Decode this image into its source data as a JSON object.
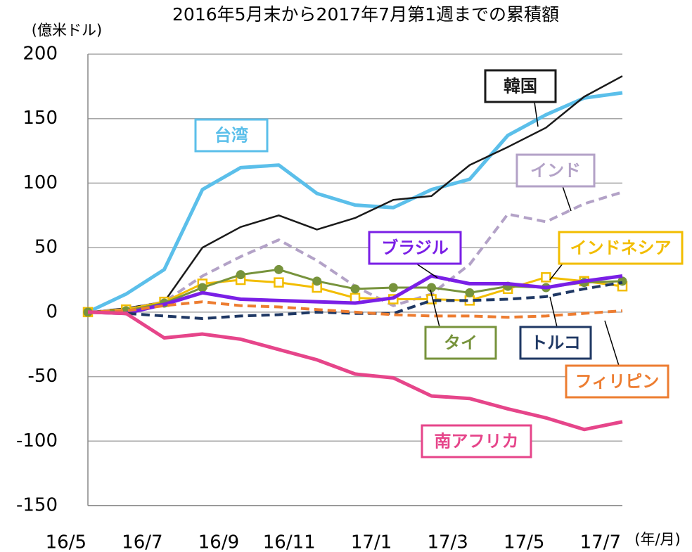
{
  "chart_data": {
    "type": "line",
    "title": "2016年5月末から2017年7月第1週までの累積額",
    "y_label": "(億米ドル)",
    "x_label": "(年/月)",
    "categories": [
      "16/5",
      null,
      "16/7",
      null,
      "16/9",
      null,
      "16/11",
      null,
      "17/1",
      null,
      "17/3",
      null,
      "17/5",
      null,
      "17/7"
    ],
    "ylim": [
      -150,
      200
    ],
    "yticks": [
      -150,
      -100,
      -50,
      0,
      50,
      100,
      150,
      200
    ],
    "grid": true,
    "series": [
      {
        "name": "台湾",
        "color": "#5bbfea",
        "values": [
          0,
          14,
          33,
          95,
          112,
          114,
          92,
          83,
          81,
          95,
          103,
          137,
          153,
          166,
          170
        ]
      },
      {
        "name": "韓国",
        "color": "#1a1a1a",
        "values": [
          0,
          3,
          8,
          50,
          66,
          75,
          64,
          73,
          87,
          90,
          114,
          128,
          143,
          167,
          183
        ]
      },
      {
        "name": "インド",
        "color": "#b3a2c7",
        "dashed": true,
        "values": [
          0,
          2,
          8,
          28,
          43,
          56,
          40,
          20,
          5,
          14,
          37,
          76,
          70,
          84,
          93
        ]
      },
      {
        "name": "インドネシア",
        "color": "#f2bd00",
        "marker": "square",
        "values": [
          0,
          2,
          8,
          22,
          25,
          23,
          19,
          11,
          10,
          10,
          9,
          18,
          27,
          24,
          20
        ]
      },
      {
        "name": "タイ",
        "color": "#77933c",
        "marker": "circle",
        "values": [
          0,
          1,
          7,
          19,
          29,
          33,
          24,
          18,
          19,
          19,
          15,
          20,
          19,
          23,
          24
        ]
      },
      {
        "name": "ブラジル",
        "color": "#7a1fe6",
        "values": [
          0,
          -1,
          6,
          15,
          10,
          9,
          8,
          7,
          11,
          28,
          22,
          22,
          19,
          24,
          28
        ]
      },
      {
        "name": "トルコ",
        "color": "#1f3864",
        "dashed": true,
        "values": [
          0,
          -1,
          -3,
          -5,
          -3,
          -2,
          0,
          -1,
          -1,
          9,
          9,
          10,
          12,
          18,
          23
        ]
      },
      {
        "name": "フィリピン",
        "color": "#ed7d31",
        "dashed": true,
        "values": [
          0,
          1,
          5,
          8,
          5,
          4,
          2,
          0,
          -2,
          -3,
          -3,
          -4,
          -3,
          -1,
          1
        ]
      },
      {
        "name": "南アフリカ",
        "color": "#e6458a",
        "values": [
          0,
          -1,
          -20,
          -17,
          -21,
          -29,
          -37,
          -48,
          -51,
          -65,
          -67,
          -75,
          -82,
          -91,
          -85
        ]
      }
    ]
  }
}
